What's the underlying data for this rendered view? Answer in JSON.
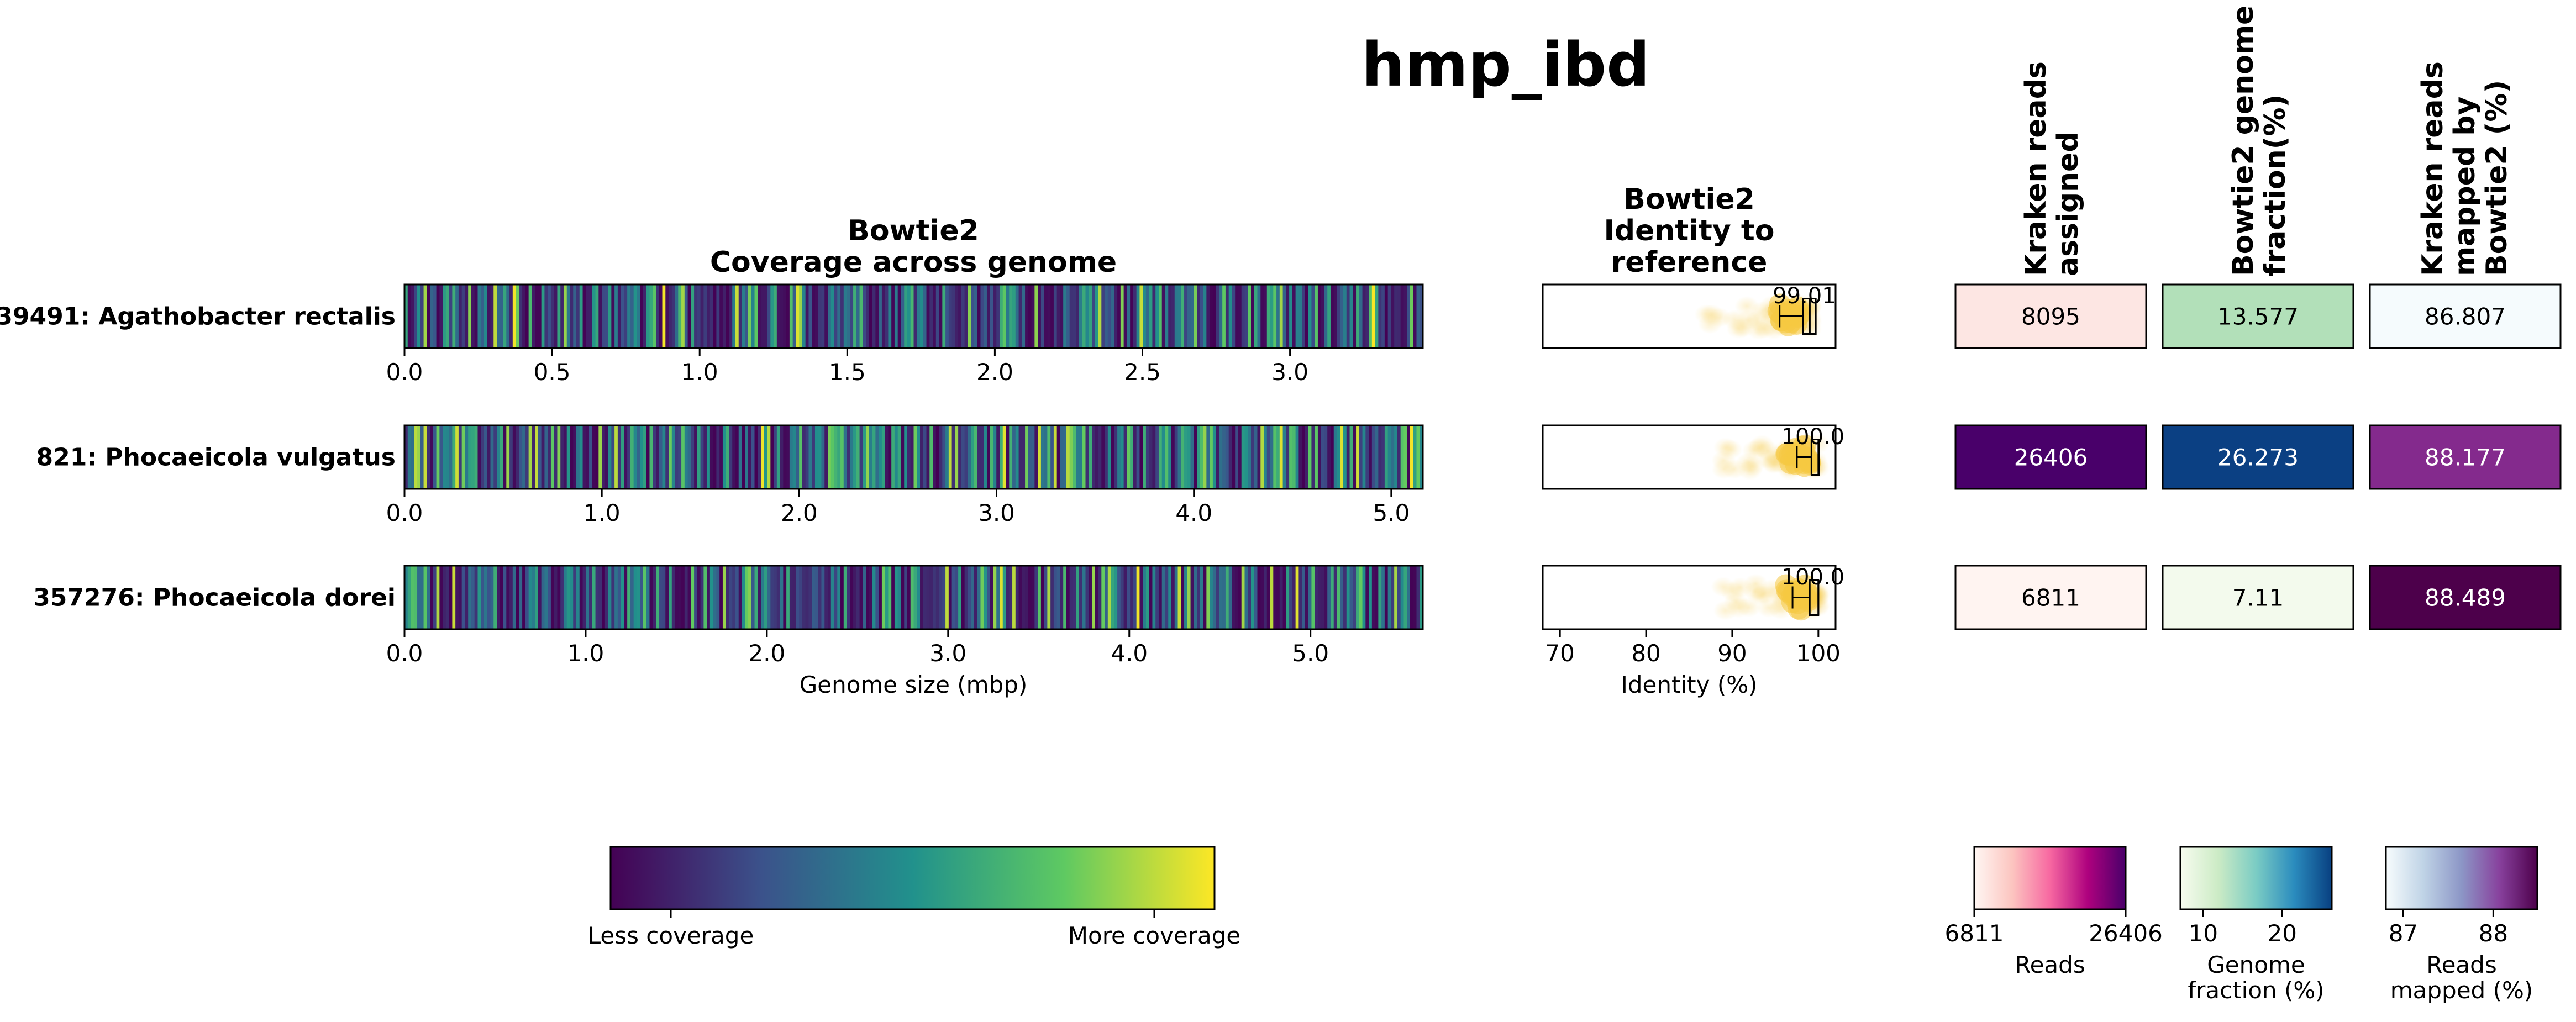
{
  "title": "hmp_ibd",
  "panel_titles": {
    "coverage": [
      "Bowtie2",
      "Coverage across genome"
    ],
    "identity": [
      "Bowtie2",
      "Identity to",
      "reference"
    ],
    "kraken_reads": [
      "Kraken reads",
      "assigned"
    ],
    "genome_fraction": [
      "Bowtie2 genome",
      "fraction(%)"
    ],
    "mapped": [
      "Kraken reads",
      "mapped by",
      "Bowtie2 (%)"
    ]
  },
  "axis_labels": {
    "coverage_x": "Genome size (mbp)",
    "identity_x": "Identity (%)"
  },
  "chart_data": [
    {
      "type": "heatmap",
      "name": "coverage",
      "rows": [
        {
          "label": "39491: Agathobacter rectalis",
          "genome_mbp": 3.45,
          "xticks": [
            "0.0",
            "0.5",
            "1.0",
            "1.5",
            "2.0",
            "2.5",
            "3.0"
          ],
          "tick_values": [
            0,
            0.5,
            1,
            1.5,
            2,
            2.5,
            3
          ],
          "mean_coverage": 0.3,
          "seed": 11
        },
        {
          "label": "821: Phocaeicola vulgatus",
          "genome_mbp": 5.16,
          "xticks": [
            "0.0",
            "1.0",
            "2.0",
            "3.0",
            "4.0",
            "5.0"
          ],
          "tick_values": [
            0,
            1,
            2,
            3,
            4,
            5
          ],
          "mean_coverage": 0.62,
          "seed": 23
        },
        {
          "label": "357276: Phocaeicola dorei",
          "genome_mbp": 5.62,
          "xticks": [
            "0.0",
            "1.0",
            "2.0",
            "3.0",
            "4.0",
            "5.0"
          ],
          "tick_values": [
            0,
            1,
            2,
            3,
            4,
            5
          ],
          "mean_coverage": 0.22,
          "seed": 37
        }
      ],
      "colormap": "viridis",
      "colorbar_labels": [
        "Less coverage",
        "More coverage"
      ]
    },
    {
      "type": "box",
      "name": "identity",
      "xlim": [
        68,
        102
      ],
      "xticks": [
        "70",
        "80",
        "90",
        "100"
      ],
      "tick_values": [
        70,
        80,
        90,
        100
      ],
      "rows": [
        {
          "label": "39491: Agathobacter rectalis",
          "median": 99.01,
          "median_label": "99.01",
          "q1": 98.2,
          "q3": 99.7,
          "whisker_low": 95.5,
          "whisker_high": 100.0
        },
        {
          "label": "821: Phocaeicola vulgatus",
          "median": 100.0,
          "median_label": "100.0",
          "q1": 99.2,
          "q3": 100.0,
          "whisker_low": 97.5,
          "whisker_high": 100.0
        },
        {
          "label": "357276: Phocaeicola dorei",
          "median": 100.0,
          "median_label": "100.0",
          "q1": 99.0,
          "q3": 100.0,
          "whisker_low": 97.0,
          "whisker_high": 100.0
        }
      ],
      "point_color": "#f5c842"
    },
    {
      "type": "table",
      "name": "kraken_reads_assigned",
      "values": [
        "8095",
        "26406",
        "6811"
      ],
      "numeric": [
        8095,
        26406,
        6811
      ],
      "colors": [
        "#fde6e3",
        "#49006a",
        "#fff4f1"
      ],
      "colorbar": {
        "ticks": [
          "6811",
          "26406"
        ],
        "label": [
          "Reads"
        ],
        "stops": [
          "#fff7f3",
          "#fcc5c0",
          "#f768a1",
          "#ae017e",
          "#49006a"
        ]
      }
    },
    {
      "type": "table",
      "name": "genome_fraction",
      "values": [
        "13.577",
        "26.273",
        "7.11"
      ],
      "numeric": [
        13.577,
        26.273,
        7.11
      ],
      "colors": [
        "#b2e0b9",
        "#0b4083",
        "#f3faed"
      ],
      "colorbar": {
        "ticks": [
          "10",
          "20"
        ],
        "tick_values": [
          10,
          20
        ],
        "range": [
          7.11,
          26.273
        ],
        "label": [
          "Genome",
          "fraction (%)"
        ],
        "stops": [
          "#f7fcf0",
          "#ccebc5",
          "#7bccc4",
          "#2b8cbe",
          "#084081"
        ]
      }
    },
    {
      "type": "table",
      "name": "mapped_percent",
      "values": [
        "86.807",
        "88.177",
        "88.489"
      ],
      "numeric": [
        86.807,
        88.177,
        88.489
      ],
      "colors": [
        "#f5fbfd",
        "#842a8d",
        "#4d004b"
      ],
      "colorbar": {
        "ticks": [
          "87",
          "88"
        ],
        "tick_values": [
          87,
          88
        ],
        "range": [
          86.807,
          88.489
        ],
        "label": [
          "Reads",
          "mapped (%)"
        ],
        "stops": [
          "#f7fcfd",
          "#bfd3e6",
          "#8c96c6",
          "#88419d",
          "#4d004b"
        ]
      }
    }
  ]
}
